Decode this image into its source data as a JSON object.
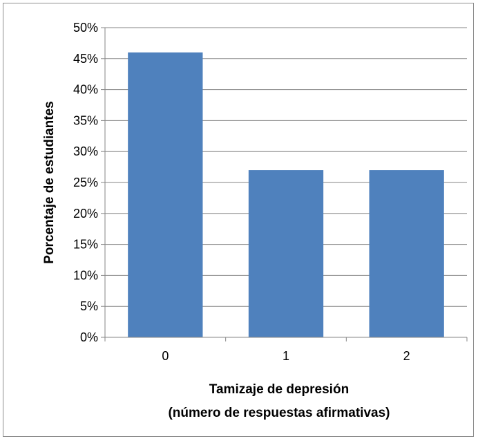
{
  "chart_data": {
    "type": "bar",
    "categories": [
      "0",
      "1",
      "2"
    ],
    "values": [
      46,
      27,
      27
    ],
    "ylim": [
      0,
      50
    ],
    "yticks": [
      0,
      5,
      10,
      15,
      20,
      25,
      30,
      35,
      40,
      45,
      50
    ],
    "ytick_suffix": "%",
    "ylabel": "Porcentaje de estudiantes",
    "xlabel_line1": "Tamizaje de depresión",
    "xlabel_line2": "(número de respuestas afirmativas)",
    "grid": true,
    "legend": false,
    "bar_color": "#4f81bd",
    "grid_color": "#868686"
  }
}
